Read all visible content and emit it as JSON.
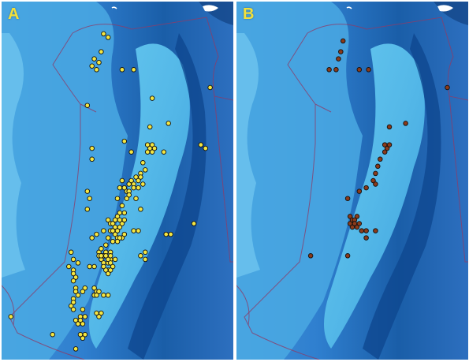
{
  "figure": {
    "panels": [
      {
        "id": "A",
        "label": "A",
        "label_color": "#f2e03a",
        "marker_color": "#f4e642",
        "marker_stroke": "#111111",
        "points": [
          [
            0.44,
            0.09
          ],
          [
            0.46,
            0.1
          ],
          [
            0.43,
            0.14
          ],
          [
            0.4,
            0.16
          ],
          [
            0.42,
            0.17
          ],
          [
            0.39,
            0.18
          ],
          [
            0.41,
            0.19
          ],
          [
            0.52,
            0.19
          ],
          [
            0.57,
            0.19
          ],
          [
            0.37,
            0.29
          ],
          [
            0.9,
            0.24
          ],
          [
            0.65,
            0.27
          ],
          [
            0.72,
            0.34
          ],
          [
            0.64,
            0.35
          ],
          [
            0.53,
            0.39
          ],
          [
            0.63,
            0.4
          ],
          [
            0.64,
            0.41
          ],
          [
            0.65,
            0.4
          ],
          [
            0.66,
            0.41
          ],
          [
            0.63,
            0.42
          ],
          [
            0.65,
            0.42
          ],
          [
            0.39,
            0.41
          ],
          [
            0.86,
            0.4
          ],
          [
            0.88,
            0.41
          ],
          [
            0.7,
            0.42
          ],
          [
            0.56,
            0.42
          ],
          [
            0.39,
            0.44
          ],
          [
            0.61,
            0.45
          ],
          [
            0.62,
            0.47
          ],
          [
            0.6,
            0.48
          ],
          [
            0.37,
            0.53
          ],
          [
            0.38,
            0.55
          ],
          [
            0.37,
            0.58
          ],
          [
            0.52,
            0.5
          ],
          [
            0.53,
            0.52
          ],
          [
            0.54,
            0.53
          ],
          [
            0.55,
            0.51
          ],
          [
            0.56,
            0.5
          ],
          [
            0.57,
            0.51
          ],
          [
            0.58,
            0.49
          ],
          [
            0.59,
            0.5
          ],
          [
            0.6,
            0.49
          ],
          [
            0.61,
            0.51
          ],
          [
            0.59,
            0.52
          ],
          [
            0.57,
            0.52
          ],
          [
            0.55,
            0.53
          ],
          [
            0.51,
            0.52
          ],
          [
            0.5,
            0.55
          ],
          [
            0.54,
            0.55
          ],
          [
            0.55,
            0.54
          ],
          [
            0.52,
            0.57
          ],
          [
            0.58,
            0.55
          ],
          [
            0.6,
            0.58
          ],
          [
            0.51,
            0.59
          ],
          [
            0.53,
            0.59
          ],
          [
            0.5,
            0.6
          ],
          [
            0.49,
            0.61
          ],
          [
            0.51,
            0.61
          ],
          [
            0.46,
            0.61
          ],
          [
            0.47,
            0.62
          ],
          [
            0.48,
            0.62
          ],
          [
            0.49,
            0.63
          ],
          [
            0.5,
            0.64
          ],
          [
            0.51,
            0.63
          ],
          [
            0.52,
            0.62
          ],
          [
            0.53,
            0.61
          ],
          [
            0.47,
            0.64
          ],
          [
            0.48,
            0.64
          ],
          [
            0.49,
            0.65
          ],
          [
            0.5,
            0.66
          ],
          [
            0.52,
            0.66
          ],
          [
            0.53,
            0.65
          ],
          [
            0.51,
            0.66
          ],
          [
            0.46,
            0.66
          ],
          [
            0.48,
            0.67
          ],
          [
            0.5,
            0.67
          ],
          [
            0.45,
            0.68
          ],
          [
            0.44,
            0.64
          ],
          [
            0.41,
            0.65
          ],
          [
            0.39,
            0.66
          ],
          [
            0.57,
            0.64
          ],
          [
            0.59,
            0.64
          ],
          [
            0.83,
            0.62
          ],
          [
            0.71,
            0.65
          ],
          [
            0.73,
            0.65
          ],
          [
            0.45,
            0.7
          ],
          [
            0.47,
            0.7
          ],
          [
            0.44,
            0.71
          ],
          [
            0.47,
            0.72
          ],
          [
            0.49,
            0.72
          ],
          [
            0.42,
            0.7
          ],
          [
            0.43,
            0.69
          ],
          [
            0.62,
            0.7
          ],
          [
            0.43,
            0.72
          ],
          [
            0.44,
            0.73
          ],
          [
            0.46,
            0.73
          ],
          [
            0.4,
            0.74
          ],
          [
            0.42,
            0.71
          ],
          [
            0.3,
            0.7
          ],
          [
            0.31,
            0.72
          ],
          [
            0.31,
            0.75
          ],
          [
            0.43,
            0.71
          ],
          [
            0.46,
            0.72
          ],
          [
            0.47,
            0.73
          ],
          [
            0.33,
            0.73
          ],
          [
            0.44,
            0.74
          ],
          [
            0.46,
            0.75
          ],
          [
            0.45,
            0.75
          ],
          [
            0.46,
            0.76
          ],
          [
            0.31,
            0.76
          ],
          [
            0.32,
            0.77
          ],
          [
            0.38,
            0.74
          ],
          [
            0.6,
            0.71
          ],
          [
            0.62,
            0.72
          ],
          [
            0.43,
            0.71
          ],
          [
            0.45,
            0.71
          ],
          [
            0.47,
            0.71
          ],
          [
            0.47,
            0.75
          ],
          [
            0.48,
            0.74
          ],
          [
            0.29,
            0.74
          ],
          [
            0.31,
            0.78
          ],
          [
            0.36,
            0.8
          ],
          [
            0.4,
            0.8
          ],
          [
            0.41,
            0.81
          ],
          [
            0.44,
            0.82
          ],
          [
            0.46,
            0.82
          ],
          [
            0.32,
            0.8
          ],
          [
            0.32,
            0.81
          ],
          [
            0.31,
            0.83
          ],
          [
            0.31,
            0.84
          ],
          [
            0.33,
            0.82
          ],
          [
            0.35,
            0.81
          ],
          [
            0.4,
            0.82
          ],
          [
            0.42,
            0.81
          ],
          [
            0.41,
            0.82
          ],
          [
            0.3,
            0.85
          ],
          [
            0.31,
            0.86
          ],
          [
            0.41,
            0.87
          ],
          [
            0.43,
            0.87
          ],
          [
            0.42,
            0.88
          ],
          [
            0.34,
            0.88
          ],
          [
            0.35,
            0.86
          ],
          [
            0.32,
            0.89
          ],
          [
            0.34,
            0.89
          ],
          [
            0.36,
            0.88
          ],
          [
            0.35,
            0.9
          ],
          [
            0.33,
            0.9
          ],
          [
            0.22,
            0.93
          ],
          [
            0.36,
            0.93
          ],
          [
            0.35,
            0.94
          ],
          [
            0.34,
            0.93
          ],
          [
            0.04,
            0.88
          ],
          [
            0.32,
            0.97
          ]
        ]
      },
      {
        "id": "B",
        "label": "B",
        "label_color": "#f2e03a",
        "marker_color": "#8b3a1a",
        "marker_stroke": "#111111",
        "points": [
          [
            0.46,
            0.11
          ],
          [
            0.45,
            0.14
          ],
          [
            0.44,
            0.16
          ],
          [
            0.4,
            0.19
          ],
          [
            0.43,
            0.19
          ],
          [
            0.53,
            0.19
          ],
          [
            0.57,
            0.19
          ],
          [
            0.91,
            0.24
          ],
          [
            0.66,
            0.35
          ],
          [
            0.73,
            0.34
          ],
          [
            0.64,
            0.4
          ],
          [
            0.65,
            0.41
          ],
          [
            0.66,
            0.4
          ],
          [
            0.64,
            0.42
          ],
          [
            0.62,
            0.44
          ],
          [
            0.61,
            0.46
          ],
          [
            0.6,
            0.48
          ],
          [
            0.59,
            0.5
          ],
          [
            0.6,
            0.51
          ],
          [
            0.56,
            0.52
          ],
          [
            0.53,
            0.53
          ],
          [
            0.48,
            0.55
          ],
          [
            0.49,
            0.6
          ],
          [
            0.5,
            0.61
          ],
          [
            0.51,
            0.61
          ],
          [
            0.52,
            0.6
          ],
          [
            0.5,
            0.63
          ],
          [
            0.52,
            0.63
          ],
          [
            0.53,
            0.62
          ],
          [
            0.51,
            0.62
          ],
          [
            0.49,
            0.62
          ],
          [
            0.54,
            0.64
          ],
          [
            0.56,
            0.64
          ],
          [
            0.6,
            0.64
          ],
          [
            0.56,
            0.66
          ],
          [
            0.32,
            0.71
          ],
          [
            0.48,
            0.71
          ]
        ]
      }
    ]
  }
}
